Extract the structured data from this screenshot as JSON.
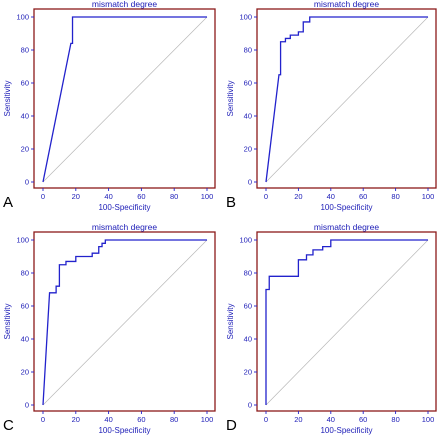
{
  "figure": {
    "panels": [
      "A",
      "B",
      "C",
      "D"
    ]
  },
  "chart_data": [
    {
      "panel": "A",
      "type": "line",
      "title": "mismatch degree",
      "xlabel": "100-Specificity",
      "ylabel": "Sensitivity",
      "xlim": [
        0,
        100
      ],
      "ylim": [
        0,
        100
      ],
      "xticks": [
        0,
        20,
        40,
        60,
        80,
        100
      ],
      "yticks": [
        0,
        20,
        40,
        60,
        80,
        100
      ],
      "reference_line": [
        [
          0,
          0
        ],
        [
          100,
          100
        ]
      ],
      "series": [
        {
          "x": [
            0,
            17,
            18,
            18,
            100
          ],
          "y": [
            0,
            84,
            84,
            100,
            100
          ]
        }
      ]
    },
    {
      "panel": "B",
      "type": "line",
      "title": "mismatch degree",
      "xlabel": "100-Specificity",
      "ylabel": "Sensitivity",
      "xlim": [
        0,
        100
      ],
      "ylim": [
        0,
        100
      ],
      "xticks": [
        0,
        20,
        40,
        60,
        80,
        100
      ],
      "yticks": [
        0,
        20,
        40,
        60,
        80,
        100
      ],
      "reference_line": [
        [
          0,
          0
        ],
        [
          100,
          100
        ]
      ],
      "series": [
        {
          "x": [
            0,
            8,
            9,
            9,
            12,
            12,
            15,
            15,
            20,
            20,
            23,
            23,
            27,
            27,
            100
          ],
          "y": [
            0,
            65,
            65,
            85,
            85,
            87,
            87,
            89,
            89,
            91,
            91,
            97,
            97,
            100,
            100
          ]
        }
      ]
    },
    {
      "panel": "C",
      "type": "line",
      "title": "mismatch degree",
      "xlabel": "100-Specificity",
      "ylabel": "Sensitivity",
      "xlim": [
        0,
        100
      ],
      "ylim": [
        0,
        100
      ],
      "xticks": [
        0,
        20,
        40,
        60,
        80,
        100
      ],
      "yticks": [
        0,
        20,
        40,
        60,
        80,
        100
      ],
      "reference_line": [
        [
          0,
          0
        ],
        [
          100,
          100
        ]
      ],
      "series": [
        {
          "x": [
            0,
            4,
            4,
            8,
            8,
            10,
            10,
            14,
            14,
            20,
            20,
            30,
            30,
            34,
            34,
            36,
            36,
            38,
            38,
            100
          ],
          "y": [
            0,
            68,
            68,
            68,
            72,
            72,
            85,
            85,
            87,
            87,
            90,
            90,
            92,
            92,
            96,
            96,
            98,
            98,
            100,
            100
          ]
        }
      ]
    },
    {
      "panel": "D",
      "type": "line",
      "title": "mismatch degree",
      "xlabel": "100-Specificity",
      "ylabel": "Sensitivity",
      "xlim": [
        0,
        100
      ],
      "ylim": [
        0,
        100
      ],
      "xticks": [
        0,
        20,
        40,
        60,
        80,
        100
      ],
      "yticks": [
        0,
        20,
        40,
        60,
        80,
        100
      ],
      "reference_line": [
        [
          0,
          0
        ],
        [
          100,
          100
        ]
      ],
      "series": [
        {
          "x": [
            0,
            0,
            2,
            2,
            8,
            8,
            20,
            20,
            25,
            25,
            29,
            29,
            35,
            35,
            40,
            40,
            100
          ],
          "y": [
            0,
            70,
            70,
            78,
            78,
            78,
            78,
            88,
            88,
            91,
            91,
            94,
            94,
            96,
            96,
            100,
            100
          ]
        }
      ]
    }
  ]
}
